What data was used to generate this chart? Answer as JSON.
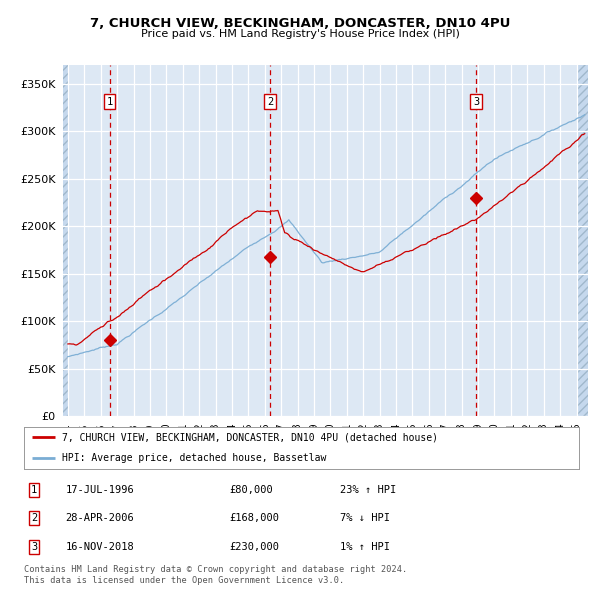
{
  "title": "7, CHURCH VIEW, BECKINGHAM, DONCASTER, DN10 4PU",
  "subtitle": "Price paid vs. HM Land Registry's House Price Index (HPI)",
  "sale_prices": [
    80000,
    168000,
    230000
  ],
  "sale_labels": [
    "1",
    "2",
    "3"
  ],
  "sale_year_floats": [
    1996.54,
    2006.32,
    2018.88
  ],
  "sale_annotations": [
    {
      "num": "1",
      "date": "17-JUL-1996",
      "price": "£80,000",
      "hpi": "23% ↑ HPI"
    },
    {
      "num": "2",
      "date": "28-APR-2006",
      "price": "£168,000",
      "hpi": "7% ↓ HPI"
    },
    {
      "num": "3",
      "date": "16-NOV-2018",
      "price": "£230,000",
      "hpi": "1% ↑ HPI"
    }
  ],
  "legend_property_label": "7, CHURCH VIEW, BECKINGHAM, DONCASTER, DN10 4PU (detached house)",
  "legend_hpi_label": "HPI: Average price, detached house, Bassetlaw",
  "footer": "Contains HM Land Registry data © Crown copyright and database right 2024.\nThis data is licensed under the Open Government Licence v3.0.",
  "property_line_color": "#cc0000",
  "hpi_line_color": "#7aadd4",
  "background_color": "#dde8f4",
  "outer_background": "#ffffff",
  "grid_color": "#ffffff",
  "dashed_line_color": "#cc0000",
  "ylim": [
    0,
    370000
  ],
  "xlim_start": 1993.7,
  "xlim_end": 2025.7,
  "yticks": [
    0,
    50000,
    100000,
    150000,
    200000,
    250000,
    300000,
    350000
  ],
  "ytick_labels": [
    "£0",
    "£50K",
    "£100K",
    "£150K",
    "£200K",
    "£250K",
    "£300K",
    "£350K"
  ],
  "xticks": [
    1994,
    1995,
    1996,
    1997,
    1998,
    1999,
    2000,
    2001,
    2002,
    2003,
    2004,
    2005,
    2006,
    2007,
    2008,
    2009,
    2010,
    2011,
    2012,
    2013,
    2014,
    2015,
    2016,
    2017,
    2018,
    2019,
    2020,
    2021,
    2022,
    2023,
    2024,
    2025
  ]
}
